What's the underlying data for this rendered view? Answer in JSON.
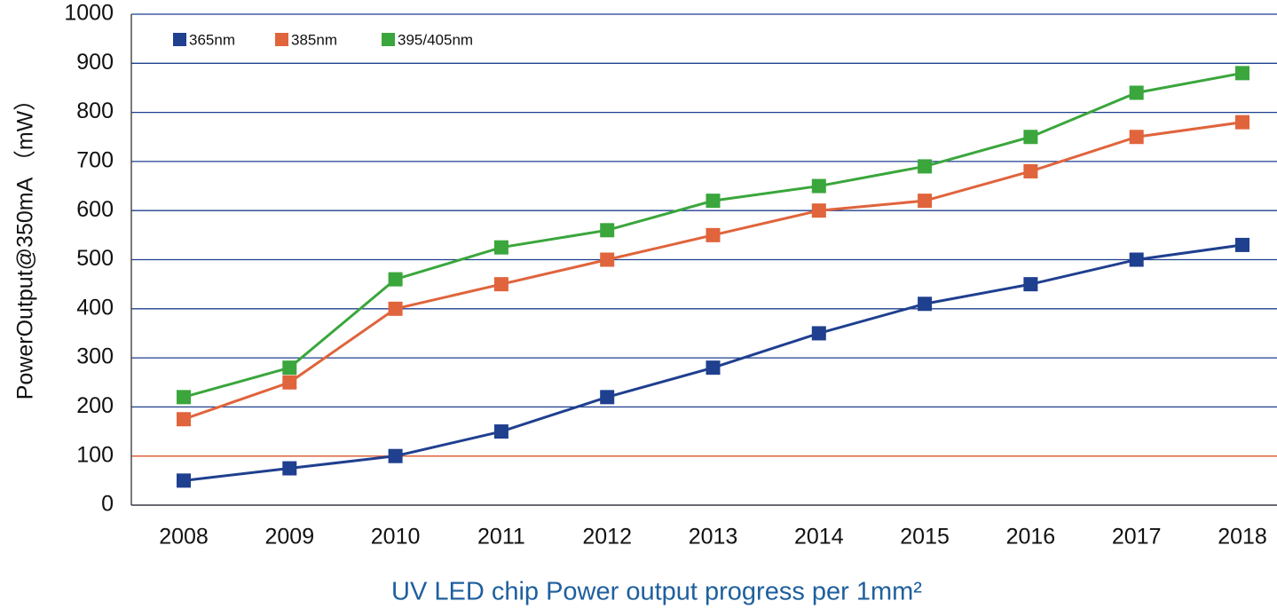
{
  "chart_data": {
    "type": "line",
    "title": "UV LED chip Power output progress  per 1mm²",
    "y_label": "PowerOutput@350mA （mW）",
    "categories": [
      "2008",
      "2009",
      "2010",
      "2011",
      "2012",
      "2013",
      "2014",
      "2015",
      "2016",
      "2017",
      "2018"
    ],
    "series": [
      {
        "name": "365nm",
        "color": "#1f3f8f",
        "values": [
          50,
          75,
          100,
          150,
          220,
          280,
          350,
          410,
          450,
          500,
          530
        ]
      },
      {
        "name": "385nm",
        "color": "#e0643c",
        "values": [
          175,
          250,
          400,
          450,
          500,
          550,
          600,
          620,
          680,
          750,
          780
        ]
      },
      {
        "name": "395/405nm",
        "color": "#3aa63c",
        "values": [
          220,
          280,
          460,
          525,
          560,
          620,
          650,
          690,
          750,
          840,
          880
        ]
      }
    ],
    "ylim": [
      0,
      1000
    ],
    "yticks": [
      0,
      100,
      200,
      300,
      400,
      500,
      600,
      700,
      800,
      900,
      1000
    ],
    "grid": true,
    "grid_color": "#1f3f8f",
    "reference_line": {
      "value": 100,
      "color": "#e0643c"
    },
    "legend": "top-left"
  }
}
